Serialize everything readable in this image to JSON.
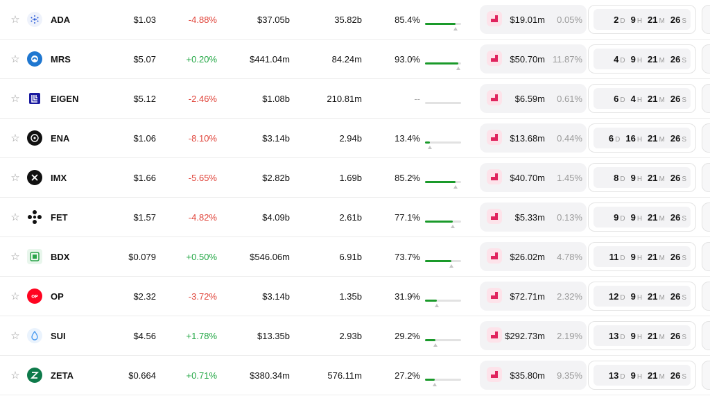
{
  "rows": [
    {
      "symbol": "ADA",
      "logo": "ada-logo",
      "price": "$1.03",
      "change": "-4.88%",
      "dir": "neg",
      "mcap": "$37.05b",
      "supply": "35.82b",
      "circ_pct": "85.4%",
      "circ_fraction": 0.854,
      "unlock_amount": "$19.01m",
      "unlock_pct": "0.05%",
      "cd": {
        "d": "2",
        "h": "9",
        "m": "21",
        "s": "26"
      }
    },
    {
      "symbol": "MRS",
      "logo": "mrs-logo",
      "price": "$5.07",
      "change": "+0.20%",
      "dir": "pos",
      "mcap": "$441.04m",
      "supply": "84.24m",
      "circ_pct": "93.0%",
      "circ_fraction": 0.93,
      "unlock_amount": "$50.70m",
      "unlock_pct": "11.87%",
      "cd": {
        "d": "4",
        "h": "9",
        "m": "21",
        "s": "26"
      }
    },
    {
      "symbol": "EIGEN",
      "logo": "eigen-logo",
      "price": "$5.12",
      "change": "-2.46%",
      "dir": "neg",
      "mcap": "$1.08b",
      "supply": "210.81m",
      "circ_pct": "--",
      "circ_fraction": null,
      "unlock_amount": "$6.59m",
      "unlock_pct": "0.61%",
      "cd": {
        "d": "6",
        "h": "4",
        "m": "21",
        "s": "26"
      }
    },
    {
      "symbol": "ENA",
      "logo": "ena-logo",
      "price": "$1.06",
      "change": "-8.10%",
      "dir": "neg",
      "mcap": "$3.14b",
      "supply": "2.94b",
      "circ_pct": "13.4%",
      "circ_fraction": 0.134,
      "unlock_amount": "$13.68m",
      "unlock_pct": "0.44%",
      "cd": {
        "d": "6",
        "h": "16",
        "m": "21",
        "s": "26"
      }
    },
    {
      "symbol": "IMX",
      "logo": "imx-logo",
      "price": "$1.66",
      "change": "-5.65%",
      "dir": "neg",
      "mcap": "$2.82b",
      "supply": "1.69b",
      "circ_pct": "85.2%",
      "circ_fraction": 0.852,
      "unlock_amount": "$40.70m",
      "unlock_pct": "1.45%",
      "cd": {
        "d": "8",
        "h": "9",
        "m": "21",
        "s": "26"
      }
    },
    {
      "symbol": "FET",
      "logo": "fet-logo",
      "price": "$1.57",
      "change": "-4.82%",
      "dir": "neg",
      "mcap": "$4.09b",
      "supply": "2.61b",
      "circ_pct": "77.1%",
      "circ_fraction": 0.771,
      "unlock_amount": "$5.33m",
      "unlock_pct": "0.13%",
      "cd": {
        "d": "9",
        "h": "9",
        "m": "21",
        "s": "26"
      }
    },
    {
      "symbol": "BDX",
      "logo": "bdx-logo",
      "price": "$0.079",
      "change": "+0.50%",
      "dir": "pos",
      "mcap": "$546.06m",
      "supply": "6.91b",
      "circ_pct": "73.7%",
      "circ_fraction": 0.737,
      "unlock_amount": "$26.02m",
      "unlock_pct": "4.78%",
      "cd": {
        "d": "11",
        "h": "9",
        "m": "21",
        "s": "26"
      }
    },
    {
      "symbol": "OP",
      "logo": "op-logo",
      "price": "$2.32",
      "change": "-3.72%",
      "dir": "neg",
      "mcap": "$3.14b",
      "supply": "1.35b",
      "circ_pct": "31.9%",
      "circ_fraction": 0.319,
      "unlock_amount": "$72.71m",
      "unlock_pct": "2.32%",
      "cd": {
        "d": "12",
        "h": "9",
        "m": "21",
        "s": "26"
      }
    },
    {
      "symbol": "SUI",
      "logo": "sui-logo",
      "price": "$4.56",
      "change": "+1.78%",
      "dir": "pos",
      "mcap": "$13.35b",
      "supply": "2.93b",
      "circ_pct": "29.2%",
      "circ_fraction": 0.292,
      "unlock_amount": "$292.73m",
      "unlock_pct": "2.19%",
      "cd": {
        "d": "13",
        "h": "9",
        "m": "21",
        "s": "26"
      }
    },
    {
      "symbol": "ZETA",
      "logo": "zeta-logo",
      "price": "$0.664",
      "change": "+0.71%",
      "dir": "pos",
      "mcap": "$380.34m",
      "supply": "576.11m",
      "circ_pct": "27.2%",
      "circ_fraction": 0.272,
      "unlock_amount": "$35.80m",
      "unlock_pct": "9.35%",
      "cd": {
        "d": "13",
        "h": "9",
        "m": "21",
        "s": "26"
      }
    }
  ],
  "units": {
    "d": "D",
    "h": "H",
    "m": "M",
    "s": "S"
  },
  "star_glyph": "☆",
  "colors": {
    "negative": "#e0443a",
    "positive": "#22a744",
    "progress": "#1a9a2a",
    "unlock_icon": "#e0245e"
  }
}
